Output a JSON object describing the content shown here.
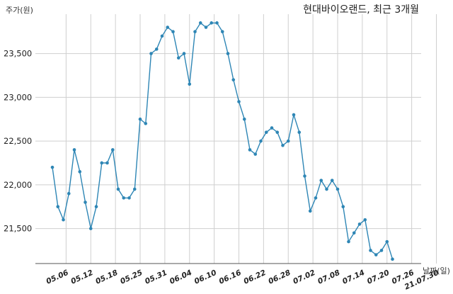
{
  "chart_data": {
    "type": "line",
    "title": "현대바이오랜드, 최근 3개월",
    "ylabel": "주가(원)",
    "xlabel": "날짜(일)",
    "ylim": [
      21100,
      23950
    ],
    "y_ticks": [
      21500,
      22000,
      22500,
      23000,
      23500
    ],
    "y_tick_labels": [
      "21,500",
      "22,000",
      "22,500",
      "23,000",
      "23,500"
    ],
    "x_tick_labels": [
      "05.06",
      "05.12",
      "05.18",
      "05.25",
      "05.31",
      "06.04",
      "06.10",
      "06.16",
      "06.22",
      "06.28",
      "07.02",
      "07.08",
      "07.14",
      "07.20",
      "07.26",
      "21.07.30"
    ],
    "x_tick_index": [
      2.5,
      7,
      11.5,
      16,
      20.5,
      25,
      29.5,
      34,
      38.5,
      43,
      47.5,
      52,
      56.5,
      61,
      65.5,
      70
    ],
    "grid": true,
    "line_color": "#2e86b5",
    "series": [
      {
        "values": [
          22200,
          21750,
          21600,
          21900,
          22400,
          22150,
          21800,
          21500,
          21750,
          22250,
          22250,
          22400,
          21950,
          21850,
          21850,
          21950,
          22750,
          22700,
          23500,
          23550,
          23700,
          23800,
          23750,
          23450,
          23500,
          23150,
          23750,
          23850,
          23800,
          23850,
          23850,
          23750,
          23500,
          23200,
          22950,
          22750,
          22400,
          22350,
          22500,
          22600,
          22650,
          22600,
          22450,
          22500,
          22800,
          22600,
          22100,
          21700,
          21850,
          22050,
          21950,
          22050,
          21950,
          21750,
          21350,
          21450,
          21550,
          21600,
          21250,
          21200,
          21250,
          21350,
          21150
        ]
      }
    ]
  }
}
